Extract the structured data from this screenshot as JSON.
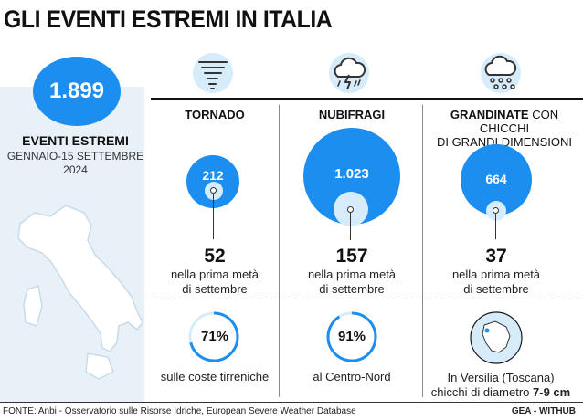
{
  "title": "GLI EVENTI ESTREMI IN ITALIA",
  "summary": {
    "total": "1.899",
    "label": "EVENTI ESTREMI",
    "period_line1": "GENNAIO-15 SETTEMBRE",
    "period_line2": "2024"
  },
  "columns": [
    {
      "icon": "tornado-icon",
      "title": "TORNADO",
      "total": "212",
      "september_count": "52",
      "september_label_line1": "nella prima metà",
      "september_label_line2": "di settembre",
      "detail_value": "71%",
      "detail_label": "sulle coste tirreniche"
    },
    {
      "icon": "storm-cloud-icon",
      "title": "NUBIFRAGI",
      "total": "1.023",
      "september_count": "157",
      "september_label_line1": "nella prima metà",
      "september_label_line2": "di settembre",
      "detail_value": "91%",
      "detail_label": "al Centro-Nord"
    },
    {
      "icon": "hail-cloud-icon",
      "title_bold": "GRANDINATE",
      "title_rest": " CON CHICCHI",
      "title_line2": "DI GRANDI DIMENSIONI",
      "total": "664",
      "september_count": "37",
      "september_label_line1": "nella prima metà",
      "september_label_line2": "di settembre",
      "detail_line1": "In Versilia (Toscana)",
      "detail_line2_prefix": "chicchi di diametro ",
      "detail_line2_value": "7-9 cm"
    }
  ],
  "footer": {
    "source": "FONTE: Anbi - Osservatorio sulle Risorse Idriche, European Severe Weather Database",
    "credit": "GEA - WITHUB"
  },
  "colors": {
    "accent": "#1b8ef0",
    "light_accent": "#d6ecfb",
    "panel_bg": "#e8f1f8"
  }
}
